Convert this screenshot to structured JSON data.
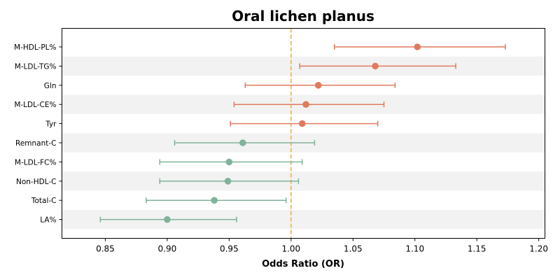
{
  "chart_data": {
    "type": "forest",
    "title": "Oral lichen planus",
    "xlabel": "Odds Ratio (OR)",
    "ylabel": "",
    "xlim": [
      0.815,
      1.205
    ],
    "x_ticks": [
      "0.85",
      "0.90",
      "0.95",
      "1.00",
      "1.05",
      "1.10",
      "1.15",
      "1.20"
    ],
    "x_tick_values": [
      0.85,
      0.9,
      0.95,
      1.0,
      1.05,
      1.1,
      1.15,
      1.2
    ],
    "reference_line": 1.0,
    "row_banding": true,
    "grid": false,
    "colors": {
      "risk": "#e07a5f",
      "protective": "#81b29a",
      "reference": "#f2c06d",
      "band": "#f2f2f2"
    },
    "rows": [
      {
        "label": "M-HDL-PL%",
        "or": 1.102,
        "lower": 1.035,
        "upper": 1.173,
        "group": "risk"
      },
      {
        "label": "M-LDL-TG%",
        "or": 1.068,
        "lower": 1.007,
        "upper": 1.133,
        "group": "risk"
      },
      {
        "label": "Gln",
        "or": 1.022,
        "lower": 0.963,
        "upper": 1.084,
        "group": "risk"
      },
      {
        "label": "M-LDL-CE%",
        "or": 1.012,
        "lower": 0.954,
        "upper": 1.075,
        "group": "risk"
      },
      {
        "label": "Tyr",
        "or": 1.009,
        "lower": 0.951,
        "upper": 1.07,
        "group": "risk"
      },
      {
        "label": "Remnant-C",
        "or": 0.961,
        "lower": 0.906,
        "upper": 1.019,
        "group": "protective"
      },
      {
        "label": "M-LDL-FC%",
        "or": 0.95,
        "lower": 0.894,
        "upper": 1.009,
        "group": "protective"
      },
      {
        "label": "Non-HDL-C",
        "or": 0.949,
        "lower": 0.894,
        "upper": 1.006,
        "group": "protective"
      },
      {
        "label": "Total-C",
        "or": 0.938,
        "lower": 0.883,
        "upper": 0.996,
        "group": "protective"
      },
      {
        "label": "LA%",
        "or": 0.9,
        "lower": 0.846,
        "upper": 0.956,
        "group": "protective"
      }
    ]
  }
}
